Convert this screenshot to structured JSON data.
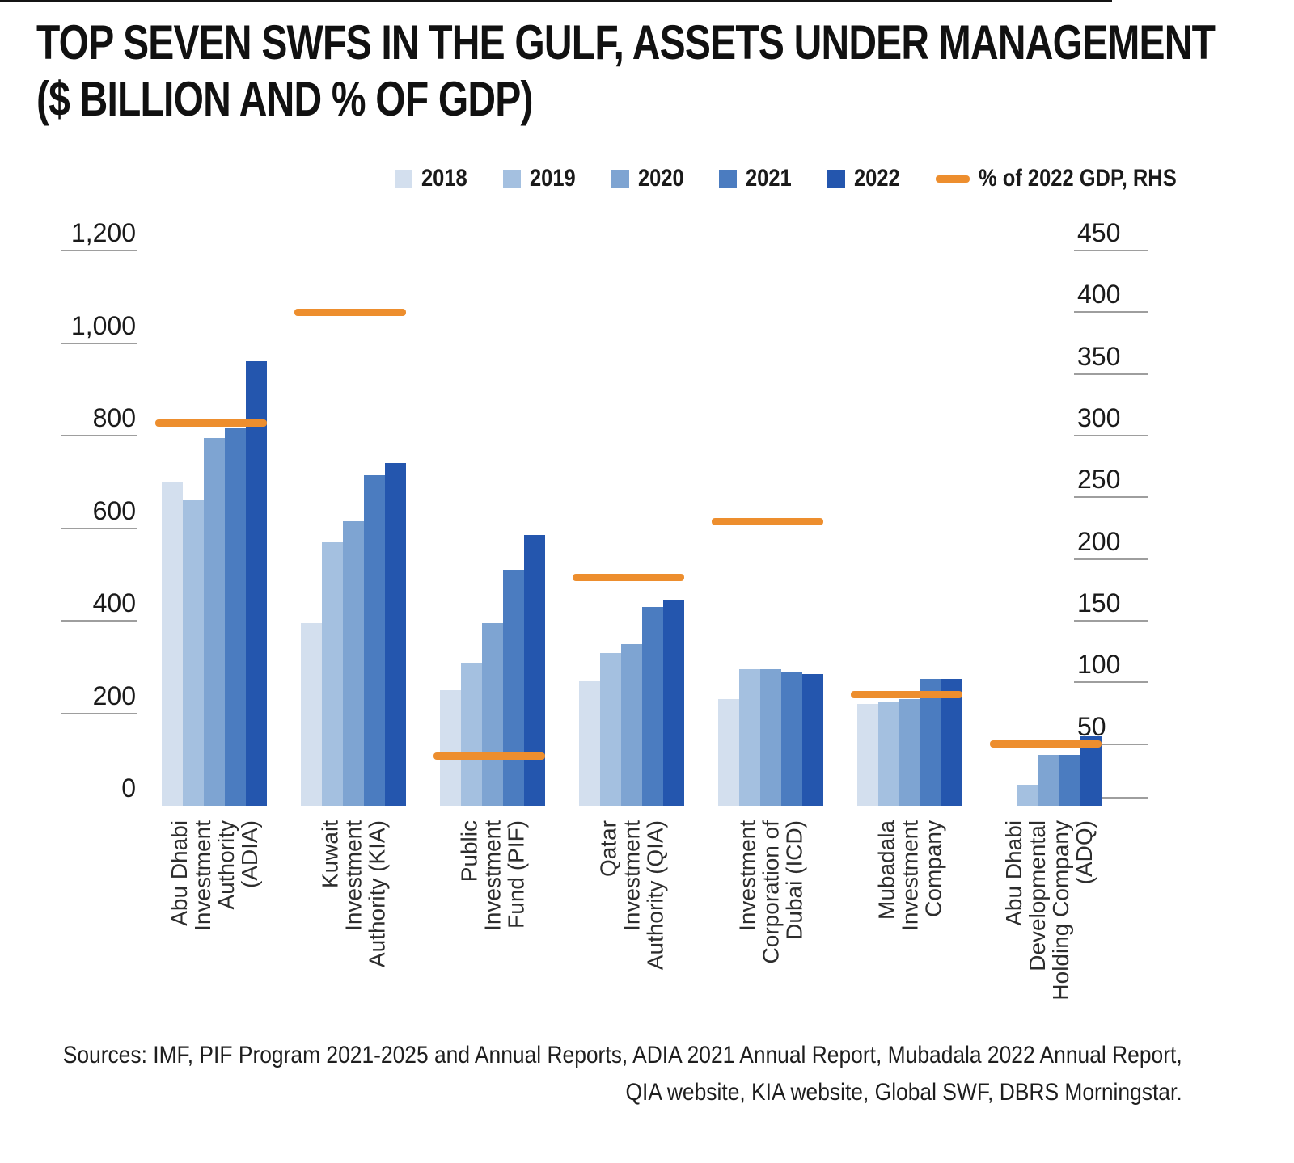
{
  "header": {
    "title_line1": "TOP SEVEN SWFS IN THE GULF, ASSETS UNDER MANAGEMENT",
    "title_line2": "($ BILLION AND % OF GDP)"
  },
  "legend": {
    "years": [
      "2018",
      "2019",
      "2020",
      "2021",
      "2022"
    ],
    "gdp_label": "% of 2022 GDP, RHS"
  },
  "axes": {
    "left_ticks": [
      "1,200",
      "1,000",
      "800",
      "600",
      "400",
      "200",
      "0"
    ],
    "right_ticks": [
      "450",
      "400",
      "350",
      "300",
      "250",
      "200",
      "150",
      "100",
      "50",
      "0"
    ]
  },
  "footer": {
    "sources_line1": "Sources: IMF, PIF Program 2021-2025 and Annual Reports, ADIA 2021 Annual Report, Mubadala 2022 Annual Report,",
    "sources_line2": "QIA website,  KIA website, Global SWF, DBRS Morningstar."
  },
  "colors": {
    "years": [
      "#d3dfee",
      "#a4c0e0",
      "#7ea4d2",
      "#4b7cc0",
      "#2456ae"
    ],
    "gdp_line": "#ED8E2E",
    "tick_line": "#9e9e9e",
    "axis_line": "#141414",
    "text": "#1a1a1a"
  },
  "chart_data": {
    "type": "bar",
    "title": "Top seven SWFs in the Gulf, assets under management ($ billion and % of GDP)",
    "categories": [
      "Abu Dhabi Investment Authority (ADIA)",
      "Kuwait Investment Authority (KIA)",
      "Public Investment Fund (PIF)",
      "Qatar Investment Authority (QIA)",
      "Investment Corporation of Dubai (ICD)",
      "Mubadala Investment Company",
      "Abu Dhabi Developmental Holding Company (ADQ)"
    ],
    "category_lines": [
      [
        "Abu Dhabi",
        "Investment",
        "Authority",
        "(ADIA)"
      ],
      [
        "Kuwait",
        "Investment",
        "Authority (KIA)"
      ],
      [
        "Public",
        "Investment",
        "Fund (PIF)"
      ],
      [
        "Qatar",
        "Investment",
        "Authority (QIA)"
      ],
      [
        "Investment",
        "Corporation of",
        "Dubai (ICD)"
      ],
      [
        "Mubadala",
        "Investment",
        "Company"
      ],
      [
        "Abu Dhabi",
        "Developmental",
        "Holding Company",
        "(ADQ)"
      ]
    ],
    "series": [
      {
        "name": "2018",
        "values": [
          700,
          395,
          250,
          270,
          230,
          220,
          0
        ]
      },
      {
        "name": "2019",
        "values": [
          660,
          570,
          310,
          330,
          295,
          225,
          45
        ]
      },
      {
        "name": "2020",
        "values": [
          795,
          615,
          395,
          350,
          295,
          230,
          110
        ]
      },
      {
        "name": "2021",
        "values": [
          815,
          715,
          510,
          430,
          290,
          275,
          110
        ]
      },
      {
        "name": "2022",
        "values": [
          960,
          740,
          585,
          445,
          285,
          275,
          150
        ]
      }
    ],
    "gdp_line_series": {
      "name": "% of 2022 GDP, RHS",
      "axis": "right",
      "values": [
        310,
        400,
        40,
        185,
        230,
        90,
        50
      ]
    },
    "left_axis": {
      "label": "$ billion",
      "range": [
        0,
        1200
      ],
      "tick_step": 200
    },
    "right_axis": {
      "label": "% of 2022 GDP",
      "range": [
        0,
        450
      ],
      "tick_step": 50
    },
    "legend_position": "top",
    "grid": false
  }
}
